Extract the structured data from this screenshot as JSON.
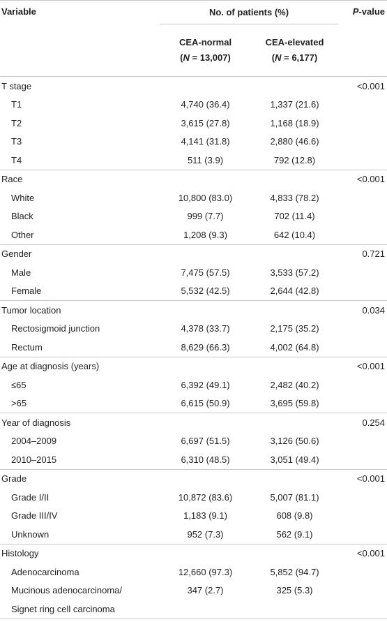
{
  "header": {
    "variable": "Variable",
    "no_patients": "No. of patients (%)",
    "p_letter": "P",
    "p_rest": "-value",
    "cea_normal": "CEA-normal",
    "cea_normal_n_open": "(",
    "cea_normal_n_var": "N",
    "cea_normal_n_val": " = 13,007)",
    "cea_elevated": "CEA-elevated",
    "cea_elevated_n_open": "(",
    "cea_elevated_n_var": "N",
    "cea_elevated_n_val": " = 6,177)"
  },
  "rows": [
    {
      "kind": "cat",
      "label": "T stage",
      "p": "<0.001"
    },
    {
      "kind": "sub",
      "label": "T1",
      "normal": "4,740 (36.4)",
      "elevated": "1,337 (21.6)"
    },
    {
      "kind": "sub",
      "label": "T2",
      "normal": "3,615 (27.8)",
      "elevated": "1,168 (18.9)"
    },
    {
      "kind": "sub",
      "label": "T3",
      "normal": "4,141 (31.8)",
      "elevated": "2,880 (46.6)"
    },
    {
      "kind": "sub",
      "label": "T4",
      "normal": "511 (3.9)",
      "elevated": "792 (12.8)"
    },
    {
      "kind": "cat",
      "label": "Race",
      "p": "<0.001"
    },
    {
      "kind": "sub",
      "label": "White",
      "normal": "10,800 (83.0)",
      "elevated": "4,833 (78.2)"
    },
    {
      "kind": "sub",
      "label": "Black",
      "normal": "999 (7.7)",
      "elevated": "702 (11.4)"
    },
    {
      "kind": "sub",
      "label": "Other",
      "normal": "1,208 (9.3)",
      "elevated": "642 (10.4)"
    },
    {
      "kind": "cat",
      "label": "Gender",
      "p": "0.721"
    },
    {
      "kind": "sub",
      "label": "Male",
      "normal": "7,475 (57.5)",
      "elevated": "3,533 (57.2)"
    },
    {
      "kind": "sub",
      "label": "Female",
      "normal": "5,532 (42.5)",
      "elevated": "2,644 (42.8)"
    },
    {
      "kind": "cat",
      "label": "Tumor location",
      "p": "0.034"
    },
    {
      "kind": "sub",
      "label": "Rectosigmoid junction",
      "normal": "4,378 (33.7)",
      "elevated": "2,175 (35.2)"
    },
    {
      "kind": "sub",
      "label": "Rectum",
      "normal": "8,629 (66.3)",
      "elevated": "4,002 (64.8)"
    },
    {
      "kind": "cat",
      "label": "Age at diagnosis (years)",
      "p": "<0.001"
    },
    {
      "kind": "sub",
      "label": "≤65",
      "normal": "6,392 (49.1)",
      "elevated": "2,482 (40.2)"
    },
    {
      "kind": "sub",
      "label": ">65",
      "normal": "6,615 (50.9)",
      "elevated": "3,695 (59.8)"
    },
    {
      "kind": "cat",
      "label": "Year of diagnosis",
      "p": "0.254"
    },
    {
      "kind": "sub",
      "label": "2004–2009",
      "normal": "6,697 (51.5)",
      "elevated": "3,126 (50.6)"
    },
    {
      "kind": "sub",
      "label": "2010–2015",
      "normal": "6,310 (48.5)",
      "elevated": "3,051 (49.4)"
    },
    {
      "kind": "cat",
      "label": "Grade",
      "p": "<0.001"
    },
    {
      "kind": "sub",
      "label": "Grade I/II",
      "normal": "10,872 (83.6)",
      "elevated": "5,007 (81.1)"
    },
    {
      "kind": "sub",
      "label": "Grade III/IV",
      "normal": "1,183 (9.1)",
      "elevated": "608 (9.8)"
    },
    {
      "kind": "sub",
      "label": "Unknown",
      "normal": "952 (7.3)",
      "elevated": "562 (9.1)"
    },
    {
      "kind": "cat",
      "label": "Histology",
      "p": "<0.001"
    },
    {
      "kind": "sub",
      "label": "Adenocarcinoma",
      "normal": "12,660 (97.3)",
      "elevated": "5,852 (94.7)"
    },
    {
      "kind": "sub",
      "label": "Mucinous adenocarcinoma/",
      "normal": "347 (2.7)",
      "elevated": "325 (5.3)"
    },
    {
      "kind": "sub",
      "label": "Signet ring cell carcinoma"
    }
  ]
}
